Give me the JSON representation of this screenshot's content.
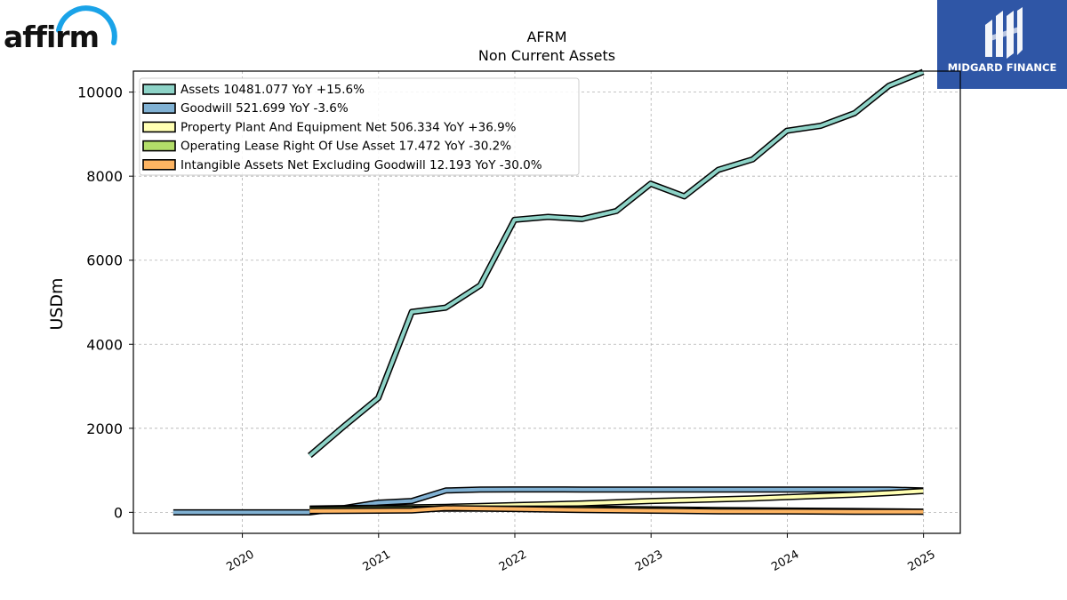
{
  "logos": {
    "left": {
      "text": "affirm",
      "accent": "#1aa3e8"
    },
    "right": {
      "text": "MIDGARD FINANCE",
      "bg": "#2f56a6"
    }
  },
  "chart_data": {
    "type": "line",
    "title": "AFRM",
    "subtitle": "Non Current  Assets",
    "ylabel": "USDm",
    "xlabel": "",
    "ylim": [
      -500,
      10500
    ],
    "xlim": [
      2019.2,
      2025.27
    ],
    "yticks": [
      0,
      2000,
      4000,
      6000,
      8000,
      10000
    ],
    "xticks": [
      2020,
      2021,
      2022,
      2023,
      2024,
      2025
    ],
    "grid": true,
    "legend_position": "top-left",
    "series": [
      {
        "name": "Assets",
        "legend": "Assets  10481.077 YoY +15.6%",
        "color": "#8dd3c7",
        "x": [
          "2020-06-30",
          "2020-09-30",
          "2020-12-31",
          "2021-03-31",
          "2021-06-30",
          "2021-09-30",
          "2021-12-31",
          "2022-03-31",
          "2022-06-30",
          "2022-09-30",
          "2022-12-31",
          "2023-03-31",
          "2023-06-30",
          "2023-09-30",
          "2023-12-31",
          "2024-03-31",
          "2024-06-30",
          "2024-09-30",
          "2024-12-31"
        ],
        "values": [
          1350,
          2050,
          2720,
          4770,
          4870,
          5400,
          6960,
          7030,
          6980,
          7170,
          7820,
          7520,
          8150,
          8400,
          9080,
          9200,
          9500,
          10150,
          10481
        ]
      },
      {
        "name": "Goodwill",
        "legend": "Goodwill  521.699 YoY -3.6%",
        "color": "#80b1d3",
        "x": [
          "2019-06-30",
          "2019-09-30",
          "2019-12-31",
          "2020-03-31",
          "2020-06-30",
          "2020-09-30",
          "2020-12-31",
          "2021-03-31",
          "2021-06-30",
          "2021-09-30",
          "2021-12-31",
          "2022-03-31",
          "2022-06-30",
          "2022-09-30",
          "2022-12-31",
          "2023-03-31",
          "2023-06-30",
          "2023-09-30",
          "2023-12-31",
          "2024-03-31",
          "2024-06-30",
          "2024-09-30",
          "2024-12-31"
        ],
        "values": [
          0,
          0,
          0,
          0,
          0,
          100,
          230,
          270,
          520,
          540,
          545,
          545,
          542,
          540,
          540,
          540,
          541,
          542,
          542,
          542,
          541,
          540,
          522
        ]
      },
      {
        "name": "Property Plant And Equipment Net",
        "legend": "Property Plant And Equipment Net  506.334 YoY +36.9%",
        "color": "#ffffb3",
        "x": [
          "2020-06-30",
          "2020-09-30",
          "2020-12-31",
          "2021-03-31",
          "2021-06-30",
          "2021-09-30",
          "2021-12-31",
          "2022-03-31",
          "2022-06-30",
          "2022-09-30",
          "2022-12-31",
          "2023-03-31",
          "2023-06-30",
          "2023-09-30",
          "2023-12-31",
          "2024-03-31",
          "2024-06-30",
          "2024-09-30",
          "2024-12-31"
        ],
        "values": [
          90,
          100,
          110,
          120,
          130,
          150,
          170,
          190,
          210,
          240,
          270,
          290,
          310,
          330,
          360,
          390,
          420,
          460,
          506
        ]
      },
      {
        "name": "Operating Lease Right Of Use Asset",
        "legend": "Operating Lease Right Of Use Asset  17.472 YoY -30.2%",
        "color": "#b3de69",
        "x": [
          "2020-06-30",
          "2021-06-30",
          "2022-06-30",
          "2023-06-30",
          "2024-06-30",
          "2024-12-31"
        ],
        "values": [
          70,
          85,
          90,
          55,
          30,
          17
        ]
      },
      {
        "name": "Intangible Assets Net Excluding Goodwill",
        "legend": "Intangible Assets Net Excluding Goodwill  12.193 YoY -30.0%",
        "color": "#fdb462",
        "x": [
          "2020-06-30",
          "2020-12-31",
          "2021-03-31",
          "2021-06-30",
          "2021-12-31",
          "2022-06-30",
          "2022-12-31",
          "2023-06-30",
          "2023-12-31",
          "2024-06-30",
          "2024-12-31"
        ],
        "values": [
          30,
          40,
          45,
          100,
          80,
          55,
          40,
          25,
          20,
          15,
          12
        ]
      }
    ]
  }
}
